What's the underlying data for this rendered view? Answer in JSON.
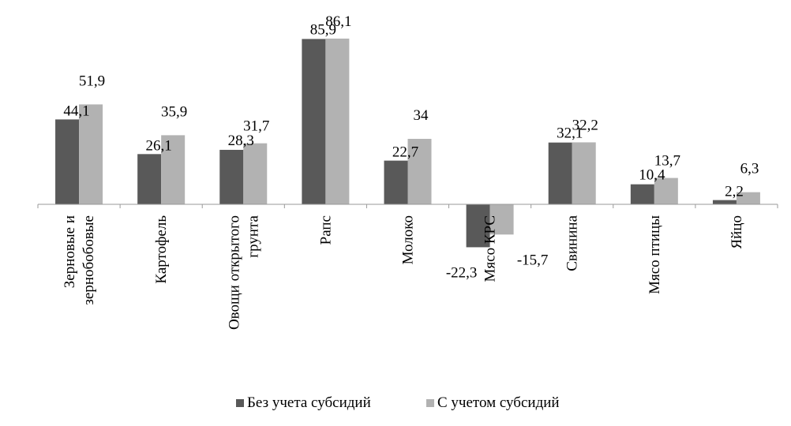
{
  "chart_data": {
    "type": "bar",
    "categories": [
      "Зерновые и зернобобовые",
      "Картофель",
      "Овощи открытого грунта",
      "Рапс",
      "Молоко",
      "Мясо КРС",
      "Свинина",
      "Мясо птицы",
      "Яйцо"
    ],
    "category_lines": [
      [
        "Зерновые и",
        "зернобобовые"
      ],
      [
        "Картофель"
      ],
      [
        "Овощи открытого",
        "грунта"
      ],
      [
        "Рапс"
      ],
      [
        "Молоко"
      ],
      [
        "Мясо КРС"
      ],
      [
        "Свинина"
      ],
      [
        "Мясо птицы"
      ],
      [
        "Яйцо"
      ]
    ],
    "series": [
      {
        "name": "Без учета субсидий",
        "color": "#595959",
        "values": [
          44.1,
          26.1,
          28.3,
          85.9,
          22.7,
          -22.3,
          32.1,
          10.4,
          2.2
        ],
        "labels": [
          "44,1",
          "26,1",
          "28,3",
          "85,9",
          "22,7",
          "-22,3",
          "32,1",
          "10,4",
          "2,2"
        ]
      },
      {
        "name": "С учетом субсидий",
        "color": "#b2b2b2",
        "values": [
          51.9,
          35.9,
          31.7,
          86.1,
          34,
          -15.7,
          32.2,
          13.7,
          6.3
        ],
        "labels": [
          "51,9",
          "35,9",
          "31,7",
          "86,1",
          "34",
          "-15,7",
          "32,2",
          "13,7",
          "6,3"
        ]
      }
    ],
    "legend_position": "bottom",
    "grid": false,
    "title": "",
    "xlabel": "",
    "ylabel": ""
  }
}
